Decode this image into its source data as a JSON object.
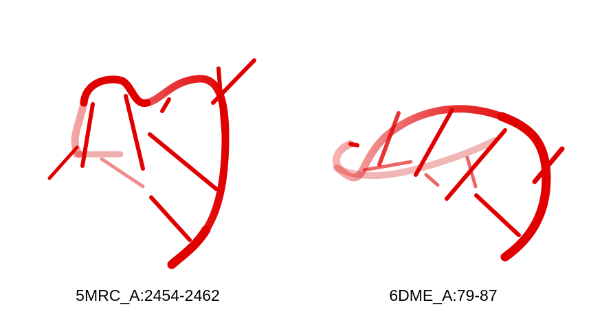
{
  "structures": [
    {
      "label": "5MRC_A:2454-2462",
      "color": "#e00000"
    },
    {
      "label": "6DME_A:79-87",
      "color": "#e00000"
    }
  ]
}
